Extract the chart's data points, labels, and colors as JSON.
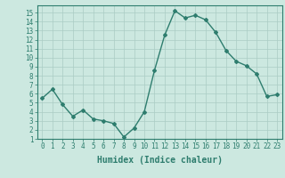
{
  "x": [
    0,
    1,
    2,
    3,
    4,
    5,
    6,
    7,
    8,
    9,
    10,
    11,
    12,
    13,
    14,
    15,
    16,
    17,
    18,
    19,
    20,
    21,
    22,
    23
  ],
  "y": [
    5.5,
    6.5,
    4.8,
    3.5,
    4.2,
    3.2,
    3.0,
    2.7,
    1.2,
    2.2,
    4.0,
    8.6,
    12.5,
    15.2,
    14.4,
    14.7,
    14.2,
    12.8,
    10.8,
    9.6,
    9.1,
    8.2,
    5.7,
    5.9
  ],
  "line_color": "#2e7d6e",
  "marker": "D",
  "marker_size": 2.0,
  "bg_color": "#cce8e0",
  "grid_color": "#aaccc4",
  "xlabel": "Humidex (Indice chaleur)",
  "xlim": [
    -0.5,
    23.5
  ],
  "ylim": [
    1,
    15.8
  ],
  "yticks": [
    1,
    2,
    3,
    4,
    5,
    6,
    7,
    8,
    9,
    10,
    11,
    12,
    13,
    14,
    15
  ],
  "xticks": [
    0,
    1,
    2,
    3,
    4,
    5,
    6,
    7,
    8,
    9,
    10,
    11,
    12,
    13,
    14,
    15,
    16,
    17,
    18,
    19,
    20,
    21,
    22,
    23
  ],
  "tick_label_size": 5.5,
  "xlabel_size": 7.0,
  "axis_color": "#2e7d6e",
  "linewidth": 1.0
}
